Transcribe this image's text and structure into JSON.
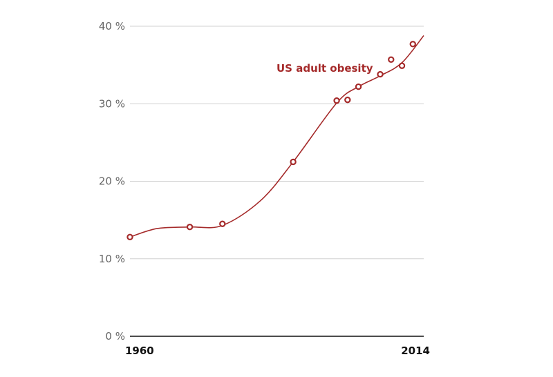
{
  "chart_data": {
    "type": "line",
    "title": "",
    "xlabel": "",
    "ylabel": "",
    "x_tick_labels": [
      "1960",
      "2014"
    ],
    "y_tick_labels": [
      "0 %",
      "10 %",
      "20 %",
      "30 %",
      "40 %"
    ],
    "y_ticks": [
      0,
      10,
      20,
      30,
      40
    ],
    "xlim": [
      1960,
      2014
    ],
    "ylim": [
      0,
      40
    ],
    "grid": true,
    "series": [
      {
        "name": "US adult obesity",
        "color": "#a52a2a",
        "points": [
          {
            "x": 1960,
            "y": 12.8
          },
          {
            "x": 1971,
            "y": 14.1
          },
          {
            "x": 1977,
            "y": 14.5
          },
          {
            "x": 1990,
            "y": 22.5
          },
          {
            "x": 1998,
            "y": 30.4
          },
          {
            "x": 2000,
            "y": 30.5
          },
          {
            "x": 2002,
            "y": 32.2
          },
          {
            "x": 2006,
            "y": 33.8
          },
          {
            "x": 2008,
            "y": 35.7
          },
          {
            "x": 2010,
            "y": 34.9
          },
          {
            "x": 2012,
            "y": 37.7
          }
        ],
        "trend": [
          {
            "x": 1960,
            "y": 12.8
          },
          {
            "x": 1965,
            "y": 13.9
          },
          {
            "x": 1971,
            "y": 14.1
          },
          {
            "x": 1977,
            "y": 14.3
          },
          {
            "x": 1984,
            "y": 17.5
          },
          {
            "x": 1990,
            "y": 22.5
          },
          {
            "x": 1998,
            "y": 30.1
          },
          {
            "x": 2002,
            "y": 32.2
          },
          {
            "x": 2006,
            "y": 33.6
          },
          {
            "x": 2010,
            "y": 35.3
          },
          {
            "x": 2014,
            "y": 38.8
          }
        ]
      }
    ]
  }
}
